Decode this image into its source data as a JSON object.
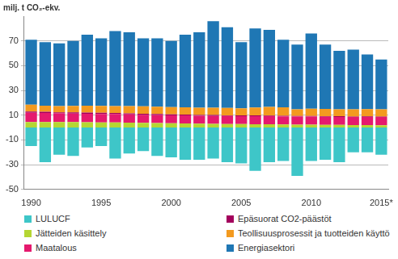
{
  "chart_data": {
    "type": "bar",
    "stacked": true,
    "grid": true,
    "ylabel": "milj. t CO₂-ekv.",
    "categories": [
      "1990",
      null,
      null,
      null,
      null,
      "1995",
      null,
      null,
      null,
      null,
      "2000",
      null,
      null,
      null,
      null,
      "2005",
      null,
      null,
      null,
      null,
      "2010",
      null,
      null,
      null,
      null,
      "2015*"
    ],
    "ylim": [
      -50,
      90
    ],
    "yticks": [
      -50,
      -30,
      -10,
      10,
      30,
      50,
      70
    ],
    "series": [
      {
        "name": "LULUCF",
        "color": "#3ec6c8",
        "values": [
          -15,
          -28,
          -22,
          -23,
          -16,
          -15,
          -25,
          -21,
          -19,
          -23,
          -24,
          -26,
          -26,
          -25,
          -28,
          -29,
          -35,
          -28,
          -27,
          -39,
          -27,
          -26,
          -28,
          -20,
          -20,
          -22
        ]
      },
      {
        "name": "Jätteiden käsittely",
        "color": "#b5d633",
        "values": [
          4.5,
          4.5,
          4.4,
          4.4,
          4.3,
          4.2,
          4.1,
          4.0,
          3.8,
          3.6,
          3.4,
          3.3,
          3.1,
          3.0,
          2.9,
          2.8,
          2.7,
          2.6,
          2.5,
          2.4,
          2.3,
          2.2,
          2.1,
          2.0,
          2.0,
          1.9
        ]
      },
      {
        "name": "Maatalous",
        "color": "#e5196e",
        "values": [
          7.5,
          7.3,
          7.0,
          6.9,
          6.9,
          6.8,
          6.8,
          6.7,
          6.6,
          6.5,
          6.5,
          6.5,
          6.4,
          6.4,
          6.4,
          6.4,
          6.5,
          6.5,
          6.5,
          6.5,
          6.5,
          6.5,
          6.5,
          6.5,
          6.6,
          6.6
        ]
      },
      {
        "name": "Epäsuorat CO2-päästöt",
        "color": "#a3005c",
        "values": [
          1.0,
          0.9,
          0.9,
          0.9,
          0.9,
          0.9,
          0.9,
          0.8,
          0.8,
          0.8,
          0.7,
          0.7,
          0.7,
          0.7,
          0.6,
          0.6,
          0.6,
          0.6,
          0.5,
          0.5,
          0.5,
          0.5,
          0.5,
          0.4,
          0.4,
          0.4
        ]
      },
      {
        "name": "Teollisuusprosessit ja tuotteiden käyttö",
        "color": "#f39a1f",
        "values": [
          5.5,
          5.0,
          5.0,
          5.3,
          5.5,
          5.6,
          5.6,
          5.8,
          6.0,
          6.0,
          5.9,
          5.8,
          5.8,
          5.9,
          6.0,
          5.7,
          6.4,
          6.9,
          6.9,
          5.3,
          5.9,
          5.9,
          5.6,
          5.8,
          5.9,
          5.9
        ]
      },
      {
        "name": "Energiasektori",
        "color": "#1f77b4",
        "values": [
          52.5,
          51.3,
          50.7,
          52.5,
          57.4,
          54.5,
          60.6,
          59.7,
          54.8,
          55.1,
          53.5,
          58.7,
          61.0,
          70.0,
          65.1,
          53.5,
          63.8,
          62.4,
          54.6,
          52.3,
          60.8,
          51.9,
          47.3,
          48.3,
          44.1,
          40.2
        ]
      }
    ]
  }
}
